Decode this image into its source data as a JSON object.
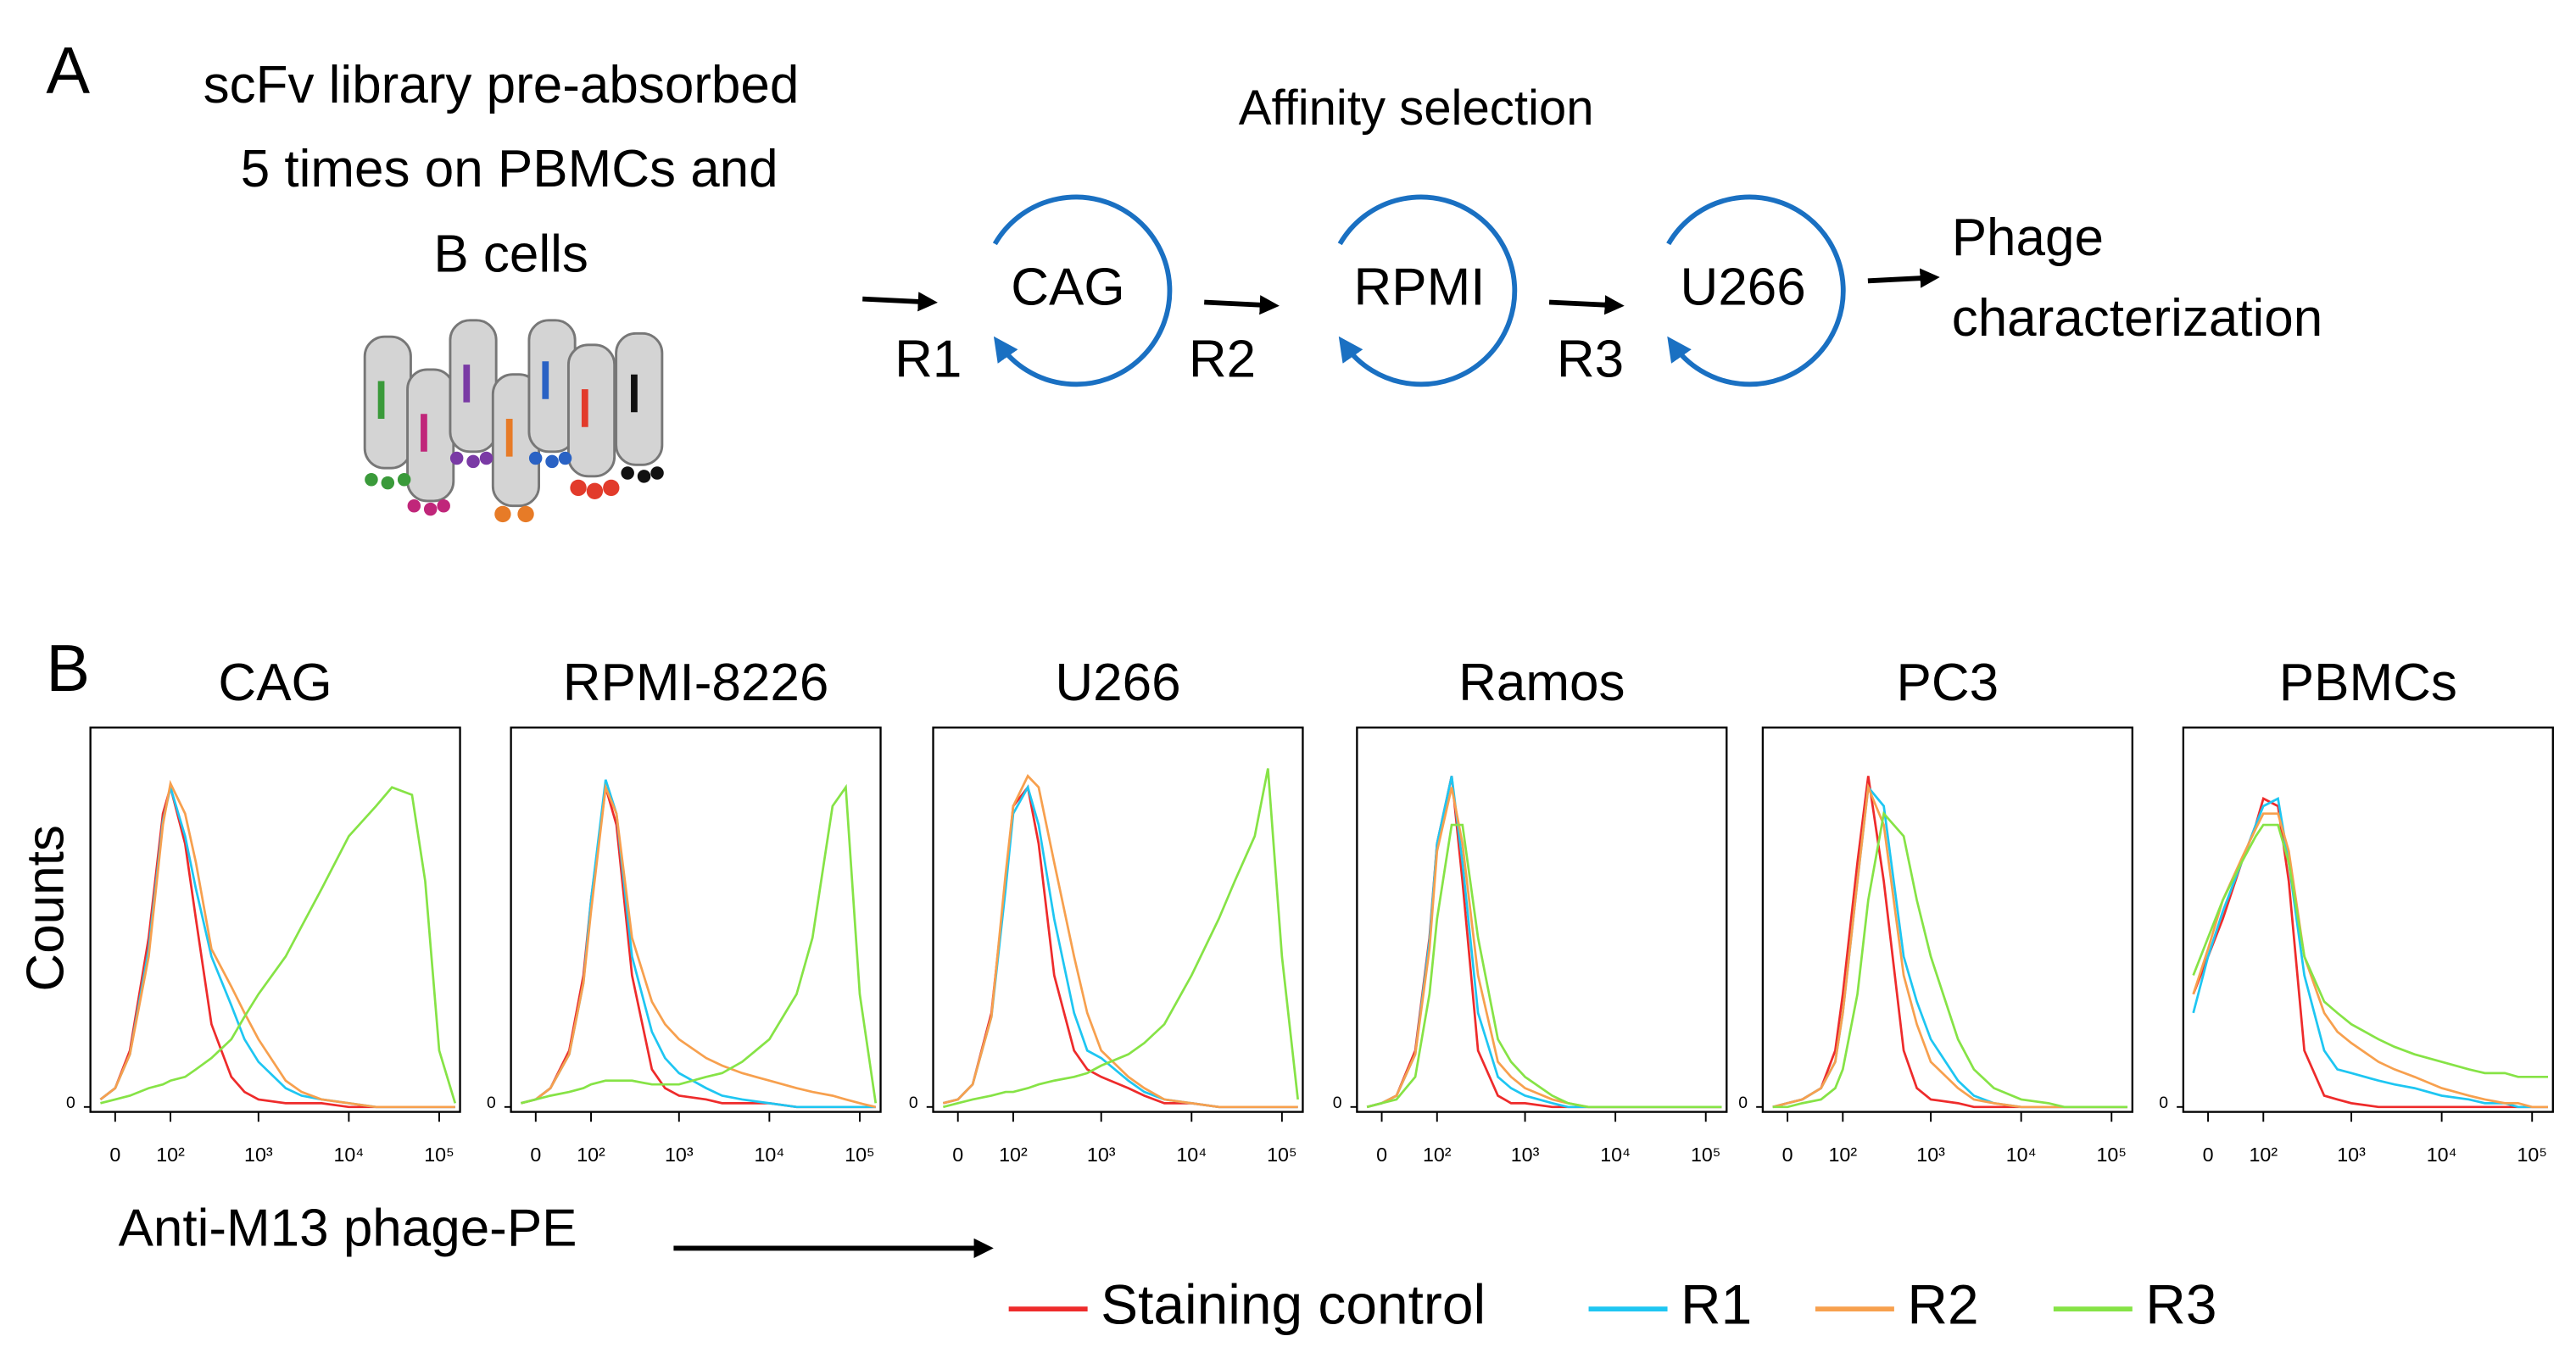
{
  "diagram": {
    "panel_label": "A",
    "library_text": [
      "scFv library pre-absorbed",
      "5 times on PBMCs and",
      "B cells"
    ],
    "title": "Affinity selection",
    "steps": [
      {
        "cell": "CAG",
        "round": "R1"
      },
      {
        "cell": "RPMI",
        "round": "R2"
      },
      {
        "cell": "U266",
        "round": "R3"
      }
    ],
    "output": [
      "Phage",
      "characterization"
    ]
  },
  "panel_b": {
    "label": "B",
    "y_label": "Counts",
    "x_label": "Anti-M13 phage-PE"
  },
  "legend": [
    {
      "name": "Staining control",
      "color": "#ee2b2b"
    },
    {
      "name": "R1",
      "color": "#1ec6f2"
    },
    {
      "name": "R2",
      "color": "#f7a04e"
    },
    {
      "name": "R3",
      "color": "#86e346"
    }
  ],
  "chart_data": [
    {
      "type": "line",
      "title": "CAG",
      "x": [
        -20,
        0,
        20,
        50,
        80,
        100,
        150,
        200,
        300,
        500,
        700,
        1000,
        2000,
        3000,
        5000,
        10000,
        20000,
        30000,
        50000,
        70000,
        100000,
        150000
      ],
      "series": [
        {
          "values": [
            2,
            5,
            15,
            45,
            78,
            85,
            70,
            50,
            22,
            8,
            4,
            2,
            1,
            1,
            1,
            0,
            0,
            0,
            0,
            0,
            0,
            0
          ]
        },
        {
          "values": [
            2,
            5,
            14,
            42,
            76,
            85,
            72,
            58,
            40,
            27,
            18,
            12,
            5,
            3,
            2,
            1,
            0,
            0,
            0,
            0,
            0,
            0
          ]
        },
        {
          "values": [
            2,
            5,
            14,
            40,
            75,
            86,
            78,
            65,
            42,
            32,
            25,
            18,
            7,
            4,
            2,
            1,
            0,
            0,
            0,
            0,
            0,
            0
          ]
        },
        {
          "values": [
            1,
            2,
            3,
            5,
            6,
            7,
            8,
            10,
            13,
            18,
            24,
            30,
            40,
            48,
            58,
            72,
            80,
            85,
            83,
            60,
            15,
            1
          ]
        }
      ],
      "xlim": [
        -35,
        170000
      ],
      "xticks": [
        0,
        {
          "value": 100,
          "label": "10²"
        },
        {
          "value": 1000,
          "label": "10³"
        },
        {
          "value": 10000,
          "label": "10⁴"
        },
        {
          "value": 100000,
          "label": "10⁵"
        }
      ],
      "ylim": [
        0,
        100
      ],
      "yticks": [
        0
      ]
    },
    {
      "type": "line",
      "title": "RPMI-8226",
      "x": [
        -20,
        0,
        20,
        50,
        80,
        100,
        150,
        200,
        300,
        500,
        700,
        1000,
        2000,
        3000,
        5000,
        10000,
        20000,
        30000,
        50000,
        70000,
        100000,
        150000
      ],
      "series": [
        {
          "values": [
            1,
            2,
            5,
            15,
            35,
            55,
            85,
            75,
            35,
            10,
            5,
            3,
            2,
            1,
            1,
            1,
            0,
            0,
            0,
            0,
            0,
            0
          ]
        },
        {
          "values": [
            1,
            2,
            5,
            14,
            33,
            55,
            87,
            78,
            40,
            20,
            13,
            9,
            5,
            3,
            2,
            1,
            0,
            0,
            0,
            0,
            0,
            0
          ]
        },
        {
          "values": [
            1,
            2,
            5,
            14,
            33,
            52,
            85,
            78,
            45,
            28,
            22,
            18,
            13,
            11,
            9,
            7,
            5,
            4,
            3,
            2,
            1,
            0
          ]
        },
        {
          "values": [
            1,
            2,
            3,
            4,
            5,
            6,
            7,
            7,
            7,
            6,
            6,
            6,
            8,
            9,
            12,
            18,
            30,
            45,
            80,
            85,
            30,
            1
          ]
        }
      ],
      "xlim": [
        -35,
        170000
      ],
      "xticks": [
        0,
        {
          "value": 100,
          "label": "10²"
        },
        {
          "value": 1000,
          "label": "10³"
        },
        {
          "value": 10000,
          "label": "10⁴"
        },
        {
          "value": 100000,
          "label": "10⁵"
        }
      ],
      "ylim": [
        0,
        100
      ],
      "yticks": [
        0
      ]
    },
    {
      "type": "line",
      "title": "U266",
      "x": [
        -20,
        0,
        20,
        50,
        80,
        100,
        150,
        200,
        300,
        500,
        700,
        1000,
        2000,
        3000,
        5000,
        10000,
        20000,
        30000,
        50000,
        70000,
        100000,
        150000
      ],
      "series": [
        {
          "values": [
            1,
            2,
            6,
            25,
            60,
            80,
            85,
            70,
            35,
            15,
            10,
            8,
            5,
            3,
            1,
            1,
            0,
            0,
            0,
            0,
            0,
            0
          ]
        },
        {
          "values": [
            1,
            2,
            6,
            24,
            58,
            78,
            85,
            75,
            50,
            25,
            15,
            13,
            7,
            4,
            2,
            1,
            0,
            0,
            0,
            0,
            0,
            0
          ]
        },
        {
          "values": [
            1,
            2,
            6,
            24,
            62,
            80,
            88,
            85,
            65,
            40,
            25,
            15,
            8,
            5,
            2,
            1,
            0,
            0,
            0,
            0,
            0,
            0
          ]
        },
        {
          "values": [
            0,
            1,
            2,
            3,
            4,
            4,
            5,
            6,
            7,
            8,
            9,
            11,
            14,
            17,
            22,
            35,
            50,
            60,
            72,
            90,
            40,
            2
          ]
        }
      ],
      "xlim": [
        -35,
        170000
      ],
      "xticks": [
        0,
        {
          "value": 100,
          "label": "10²"
        },
        {
          "value": 1000,
          "label": "10³"
        },
        {
          "value": 10000,
          "label": "10⁴"
        },
        {
          "value": 100000,
          "label": "10⁵"
        }
      ],
      "ylim": [
        0,
        100
      ],
      "yticks": [
        0
      ]
    },
    {
      "type": "line",
      "title": "Ramos",
      "x": [
        -20,
        0,
        20,
        50,
        80,
        100,
        150,
        200,
        300,
        500,
        700,
        1000,
        2000,
        3000,
        5000,
        10000,
        20000,
        30000,
        50000,
        70000,
        100000,
        150000
      ],
      "series": [
        {
          "values": [
            0,
            1,
            3,
            15,
            45,
            70,
            88,
            60,
            15,
            3,
            1,
            1,
            0,
            0,
            0,
            0,
            0,
            0,
            0,
            0,
            0,
            0
          ]
        },
        {
          "values": [
            0,
            1,
            3,
            14,
            44,
            70,
            88,
            65,
            25,
            8,
            5,
            3,
            1,
            0,
            0,
            0,
            0,
            0,
            0,
            0,
            0,
            0
          ]
        },
        {
          "values": [
            0,
            1,
            3,
            14,
            42,
            68,
            85,
            70,
            35,
            12,
            8,
            5,
            2,
            1,
            0,
            0,
            0,
            0,
            0,
            0,
            0,
            0
          ]
        },
        {
          "values": [
            0,
            1,
            2,
            8,
            30,
            50,
            75,
            75,
            45,
            18,
            12,
            8,
            3,
            1,
            0,
            0,
            0,
            0,
            0,
            0,
            0,
            0
          ]
        }
      ],
      "xlim": [
        -35,
        170000
      ],
      "xticks": [
        0,
        {
          "value": 100,
          "label": "10²"
        },
        {
          "value": 1000,
          "label": "10³"
        },
        {
          "value": 10000,
          "label": "10⁴"
        },
        {
          "value": 100000,
          "label": "10⁵"
        }
      ],
      "ylim": [
        0,
        100
      ],
      "yticks": [
        0
      ]
    },
    {
      "type": "line",
      "title": "PC3",
      "x": [
        -20,
        0,
        20,
        50,
        80,
        100,
        150,
        200,
        300,
        500,
        700,
        1000,
        2000,
        3000,
        5000,
        10000,
        20000,
        30000,
        50000,
        70000,
        100000,
        150000
      ],
      "series": [
        {
          "values": [
            0,
            1,
            2,
            5,
            15,
            30,
            65,
            88,
            60,
            15,
            5,
            2,
            1,
            0,
            0,
            0,
            0,
            0,
            0,
            0,
            0,
            0
          ]
        },
        {
          "values": [
            0,
            1,
            2,
            5,
            12,
            25,
            60,
            85,
            80,
            40,
            28,
            18,
            7,
            3,
            1,
            0,
            0,
            0,
            0,
            0,
            0,
            0
          ]
        },
        {
          "values": [
            0,
            1,
            2,
            5,
            12,
            25,
            60,
            85,
            75,
            35,
            22,
            12,
            5,
            2,
            1,
            0,
            0,
            0,
            0,
            0,
            0,
            0
          ]
        },
        {
          "values": [
            0,
            0,
            1,
            2,
            5,
            10,
            30,
            55,
            78,
            72,
            55,
            40,
            18,
            10,
            5,
            2,
            1,
            0,
            0,
            0,
            0,
            0
          ]
        }
      ],
      "xlim": [
        -35,
        170000
      ],
      "xticks": [
        0,
        {
          "value": 100,
          "label": "10²"
        },
        {
          "value": 1000,
          "label": "10³"
        },
        {
          "value": 10000,
          "label": "10⁴"
        },
        {
          "value": 100000,
          "label": "10⁵"
        }
      ],
      "ylim": [
        0,
        100
      ],
      "yticks": [
        0
      ]
    },
    {
      "type": "line",
      "title": "PBMCs",
      "x": [
        -20,
        0,
        20,
        50,
        80,
        100,
        150,
        200,
        300,
        500,
        700,
        1000,
        2000,
        3000,
        5000,
        10000,
        20000,
        30000,
        50000,
        70000,
        100000,
        150000
      ],
      "series": [
        {
          "values": [
            30,
            40,
            50,
            65,
            75,
            82,
            80,
            60,
            15,
            3,
            2,
            1,
            0,
            0,
            0,
            0,
            0,
            0,
            0,
            0,
            0,
            0
          ]
        },
        {
          "values": [
            25,
            40,
            52,
            65,
            75,
            80,
            82,
            65,
            35,
            15,
            10,
            9,
            7,
            6,
            5,
            3,
            2,
            1,
            1,
            0,
            0,
            0
          ]
        },
        {
          "values": [
            30,
            42,
            55,
            66,
            74,
            78,
            78,
            68,
            40,
            25,
            20,
            17,
            12,
            10,
            8,
            5,
            3,
            2,
            1,
            1,
            0,
            0
          ]
        },
        {
          "values": [
            35,
            45,
            55,
            65,
            72,
            75,
            75,
            65,
            40,
            28,
            25,
            22,
            18,
            16,
            14,
            12,
            10,
            9,
            9,
            8,
            8,
            8
          ]
        }
      ],
      "xlim": [
        -35,
        170000
      ],
      "xticks": [
        0,
        {
          "value": 100,
          "label": "10²"
        },
        {
          "value": 1000,
          "label": "10³"
        },
        {
          "value": 10000,
          "label": "10⁴"
        },
        {
          "value": 100000,
          "label": "10⁵"
        }
      ],
      "ylim": [
        0,
        100
      ],
      "yticks": [
        0
      ]
    }
  ]
}
